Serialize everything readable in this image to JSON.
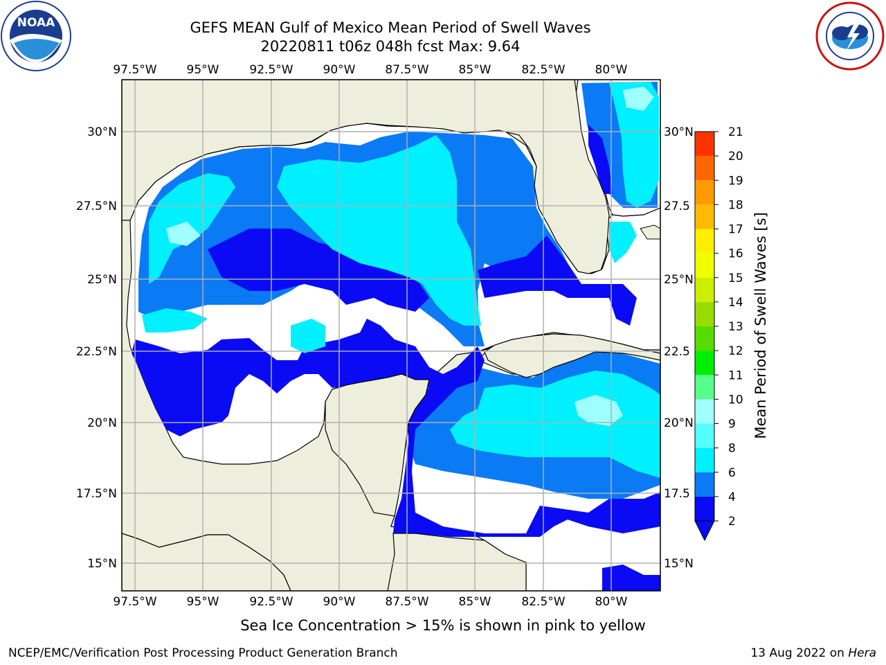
{
  "header": {
    "title_line1": "GEFS MEAN Gulf of Mexico Mean Period of Swell Waves",
    "title_line2": "20220811 t06z 048h fcst   Max: 9.64"
  },
  "logos": {
    "left": {
      "name": "noaa-logo",
      "text": "NOAA",
      "ring_text": "NATIONAL OCEANIC AND ATMOSPHERIC ADMINISTRATION · U.S. DEPARTMENT OF COMMERCE"
    },
    "right": {
      "name": "nws-logo",
      "ring_text": "NATIONAL WEATHER SERVICE"
    }
  },
  "map": {
    "lon_ticks": [
      "97.5°W",
      "95°W",
      "92.5°W",
      "90°W",
      "87.5°W",
      "85°W",
      "82.5°W",
      "80°W"
    ],
    "lat_ticks_left": [
      "30°N",
      "27.5°N",
      "25°N",
      "22.5°N",
      "20°N",
      "17.5°N",
      "15°N"
    ],
    "lat_ticks_right": [
      "30°N",
      "27.5",
      "25°N",
      "22.5",
      "20°N",
      "17.5",
      "15°N"
    ],
    "extent": {
      "lon": [
        -98,
        -79
      ],
      "lat": [
        14,
        32
      ]
    },
    "colors": {
      "land": "#eeeedc",
      "ocean_no_data": "#ffffff",
      "grid": "#b0b0b0"
    }
  },
  "colorbar": {
    "label": "Mean Period of Swell Waves [s]",
    "ticks": [
      "2",
      "4",
      "6",
      "8",
      "9",
      "10",
      "11",
      "12",
      "13",
      "14",
      "15",
      "16",
      "17",
      "18",
      "19",
      "20",
      "21"
    ],
    "levels": [
      2,
      4,
      6,
      8,
      9,
      10,
      11,
      12,
      13,
      14,
      15,
      16,
      17,
      18,
      19,
      20,
      21
    ],
    "colors": [
      "#0a0af5",
      "#0a7af5",
      "#00f0ff",
      "#55ffff",
      "#a0ffff",
      "#55ff88",
      "#00ee00",
      "#55dd00",
      "#99dd00",
      "#ccee00",
      "#eeff00",
      "#ffee00",
      "#ffbb00",
      "#ff9900",
      "#ff6600",
      "#ff3300",
      "#ff0000"
    ],
    "extend": "min"
  },
  "footer": {
    "ice_note": "Sea Ice Concentration > 15% is shown in pink to yellow",
    "credit": "NCEP/EMC/Verification Post Processing Product Generation Branch",
    "date_prefix": "13 Aug 2022 on ",
    "date_machine": "Hera"
  }
}
